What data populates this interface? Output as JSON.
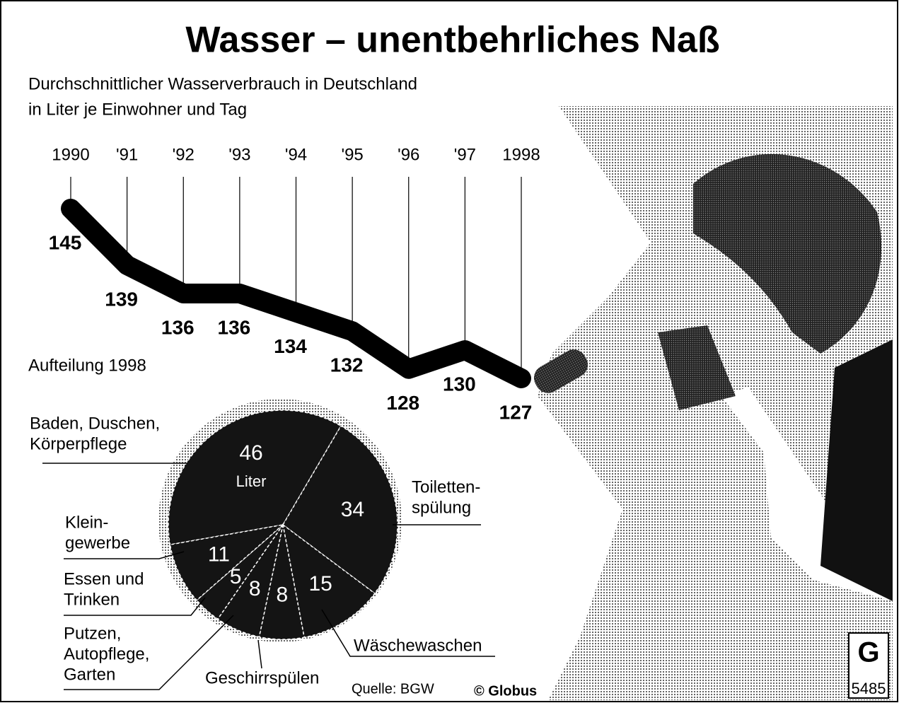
{
  "title": "Wasser – unentbehrliches Naß",
  "subtitle": [
    "Durchschnittlicher Wasserverbrauch in Deutschland",
    "in Liter je Einwohner und Tag"
  ],
  "source": "Quelle: BGW",
  "credit": "© Globus",
  "badge": "5485",
  "chart_data": [
    {
      "type": "line",
      "categories": [
        "1990",
        "'91",
        "'92",
        "'93",
        "'94",
        "'95",
        "'96",
        "'97",
        "1998"
      ],
      "values": [
        145,
        139,
        136,
        136,
        134,
        132,
        128,
        130,
        127
      ],
      "color": "#000000"
    },
    {
      "type": "pie",
      "title": "Aufteilung 1998",
      "unit": "Liter",
      "categories": [
        [
          "Baden, Duschen,",
          "Körperpflege"
        ],
        [
          "Toiletten-",
          "spülung"
        ],
        [
          "Wäschewaschen"
        ],
        [
          "Geschirrspülen"
        ],
        [
          "Putzen,",
          "Autopflege,",
          "Garten"
        ],
        [
          "Essen und",
          "Trinken"
        ],
        [
          "Klein-",
          "gewerbe"
        ]
      ],
      "values": [
        46,
        34,
        15,
        8,
        8,
        5,
        11
      ],
      "color": "#141414"
    }
  ]
}
